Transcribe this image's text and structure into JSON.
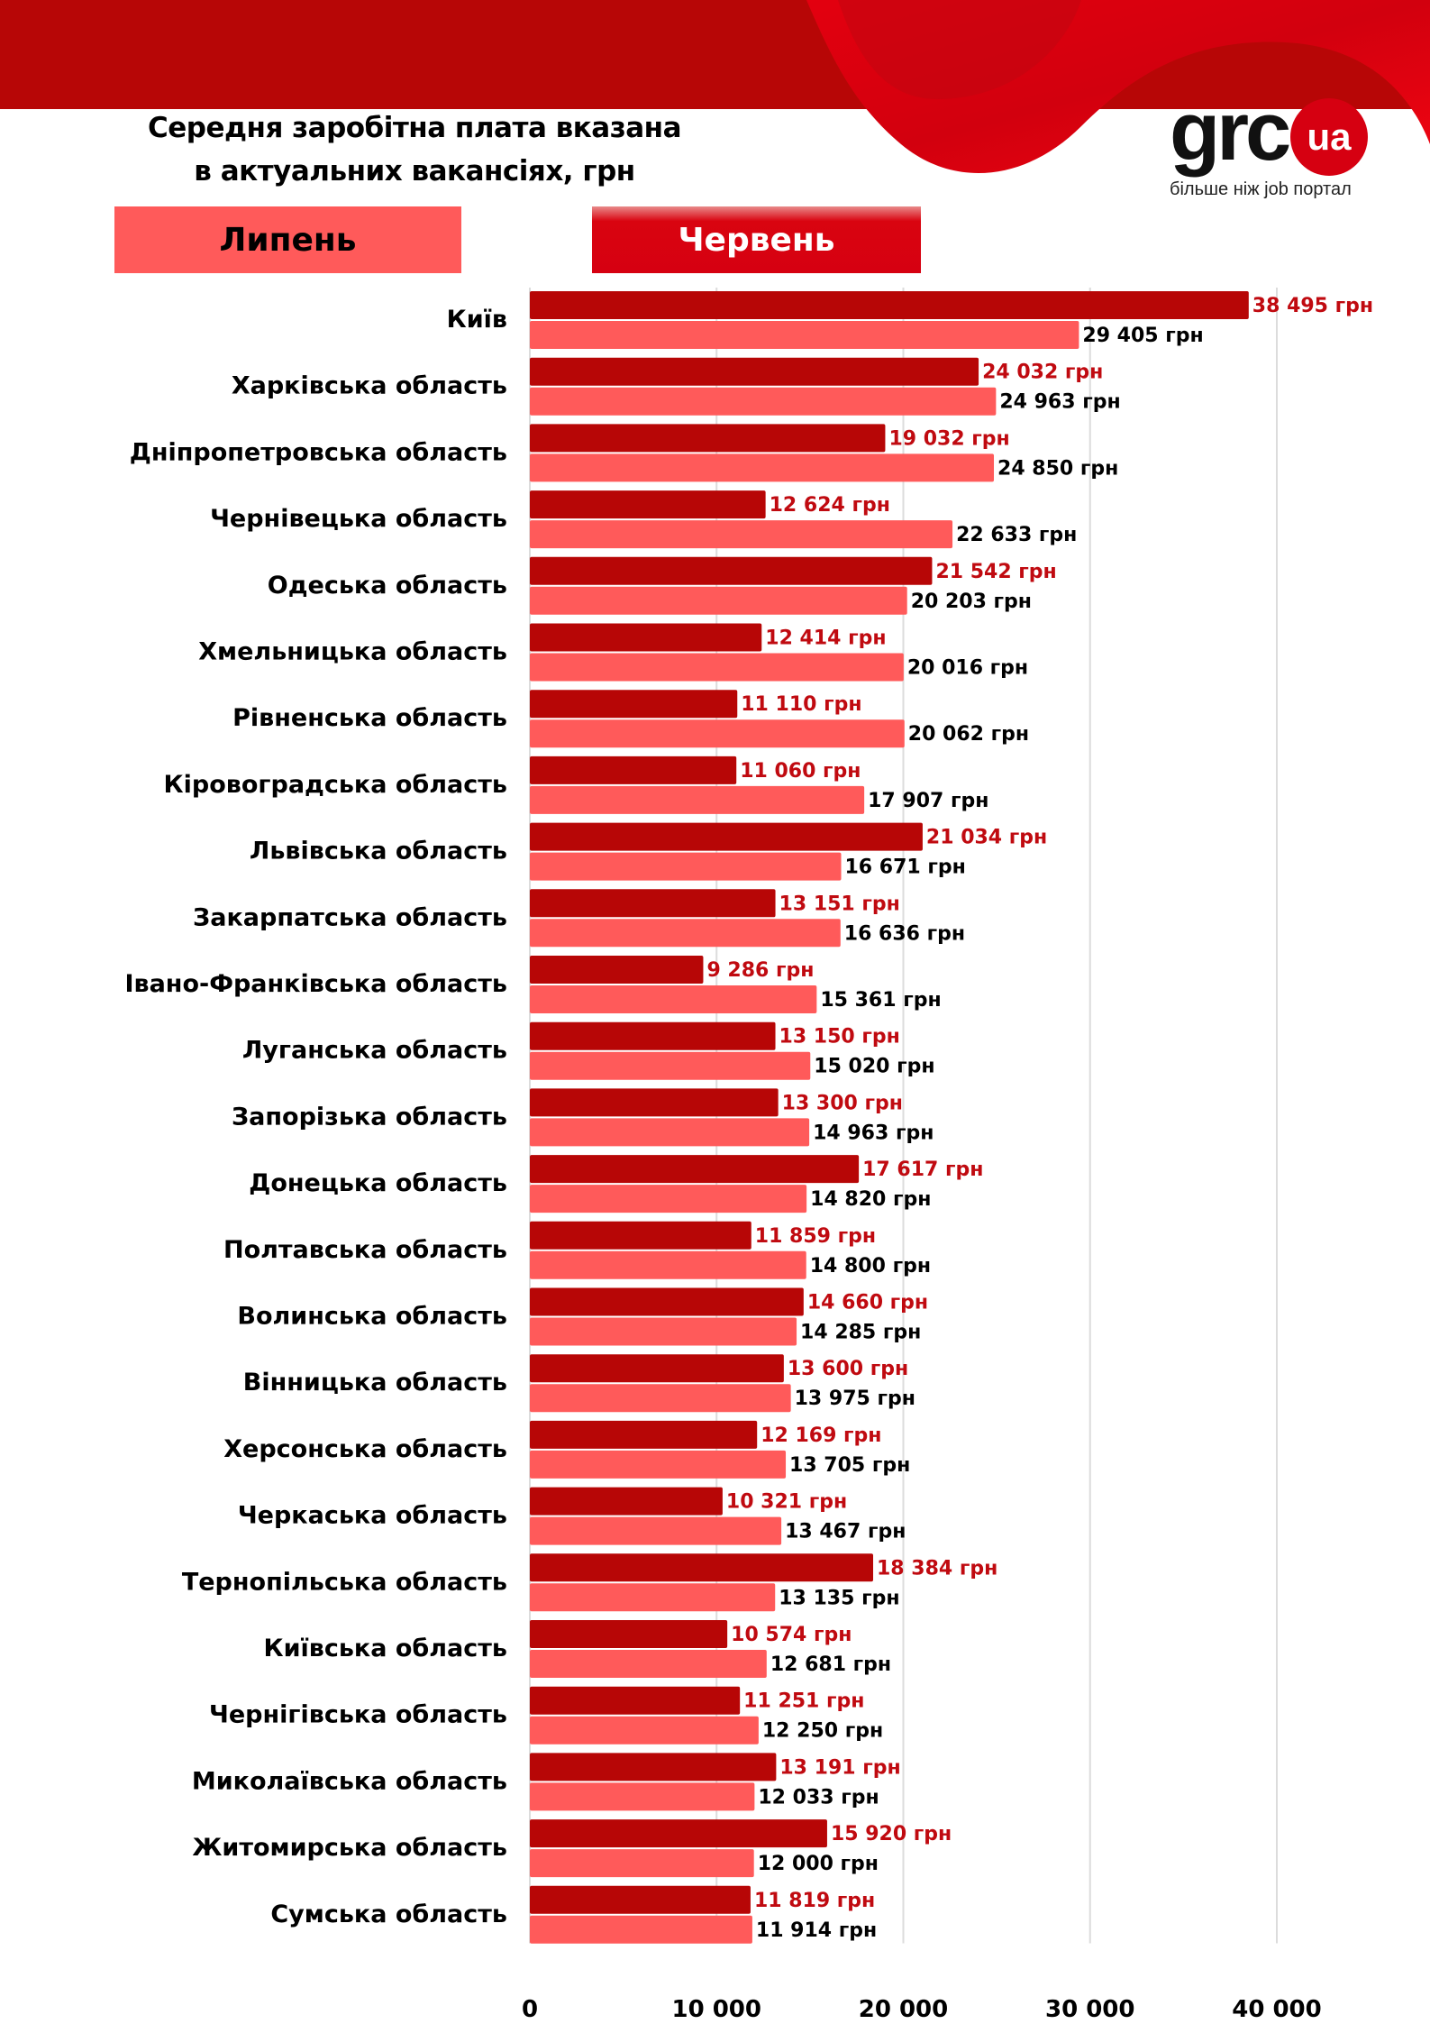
{
  "colors": {
    "banner": "#b70606",
    "june_bar": "#b70606",
    "july_bar": "#ff5a5a",
    "june_label": "#c00a10",
    "july_label": "#000000",
    "gridline": "#dcdcdc",
    "logo_red": "#d60011"
  },
  "header": {
    "title_line1": "Середня заробітна плата вказана",
    "title_line2": "в актуальних вакансіях, грн"
  },
  "logo": {
    "brand": "grc",
    "badge": "ua",
    "tagline": "більше ніж job портал"
  },
  "legend": {
    "july": "Липень",
    "june": "Червень"
  },
  "chart_data": {
    "type": "bar",
    "orientation": "horizontal",
    "title": "Середня заробітна плата вказана в актуальних вакансіях, грн",
    "xlabel": "",
    "ylabel": "",
    "xlim": [
      0,
      40000
    ],
    "xticks": [
      0,
      10000,
      20000,
      30000,
      40000
    ],
    "xtick_labels": [
      "0",
      "10 000",
      "20 000",
      "30 000",
      "40 000"
    ],
    "grid": true,
    "legend_position": "top",
    "categories": [
      "Київ",
      "Харківська область",
      "Дніпропетровська область",
      "Чернівецька область",
      "Одеська область",
      "Хмельницька область",
      "Рівненська область",
      "Кіровоградська область",
      "Львівська область",
      "Закарпатська область",
      "Івано-Франківська область",
      "Луганська область",
      "Запорізька область",
      "Донецька область",
      "Полтавська область",
      "Волинська область",
      "Вінницька область",
      "Херсонська область",
      "Черкаська область",
      "Тернопільська область",
      "Київська область",
      "Чернігівська область",
      "Миколаївська область",
      "Житомирська область",
      "Сумська область"
    ],
    "series": [
      {
        "name": "Червень",
        "values": [
          38495,
          24032,
          19032,
          12624,
          21542,
          12414,
          11110,
          11060,
          21034,
          13151,
          9286,
          13150,
          13300,
          17617,
          11859,
          14660,
          13600,
          12169,
          10321,
          18384,
          10574,
          11251,
          13191,
          15920,
          11819
        ],
        "labels": [
          "38 495 грн",
          "24 032 грн",
          "19 032 грн",
          "12 624 грн",
          "21 542 грн",
          "12 414 грн",
          "11 110 грн",
          "11 060 грн",
          "21 034 грн",
          "13 151 грн",
          "9 286 грн",
          "13 150 грн",
          "13 300 грн",
          "17 617 грн",
          "11 859 грн",
          "14 660 грн",
          "13 600 грн",
          "12 169 грн",
          "10 321 грн",
          "18 384 грн",
          "10 574 грн",
          "11 251 грн",
          "13 191 грн",
          "15 920 грн",
          "11 819 грн"
        ]
      },
      {
        "name": "Липень",
        "values": [
          29405,
          24963,
          24850,
          22633,
          20203,
          20016,
          20062,
          17907,
          16671,
          16636,
          15361,
          15020,
          14963,
          14820,
          14800,
          14285,
          13975,
          13705,
          13467,
          13135,
          12681,
          12250,
          12033,
          12000,
          11914
        ],
        "labels": [
          "29 405 грн",
          "24 963 грн",
          "24 850 грн",
          "22 633 грн",
          "20 203 грн",
          "20 016 грн",
          "20 062 грн",
          "17 907 грн",
          "16 671 грн",
          "16 636 грн",
          "15 361 грн",
          "15 020 грн",
          "14  963 грн",
          "14 820 грн",
          "14 800 грн",
          "14 285 грн",
          "13 975 грн",
          "13 705 грн",
          "13 467 грн",
          "13 135 грн",
          "12 681 грн",
          "12 250 грн",
          "12 033 грн",
          "12 000 грн",
          "11 914 грн"
        ]
      }
    ]
  }
}
